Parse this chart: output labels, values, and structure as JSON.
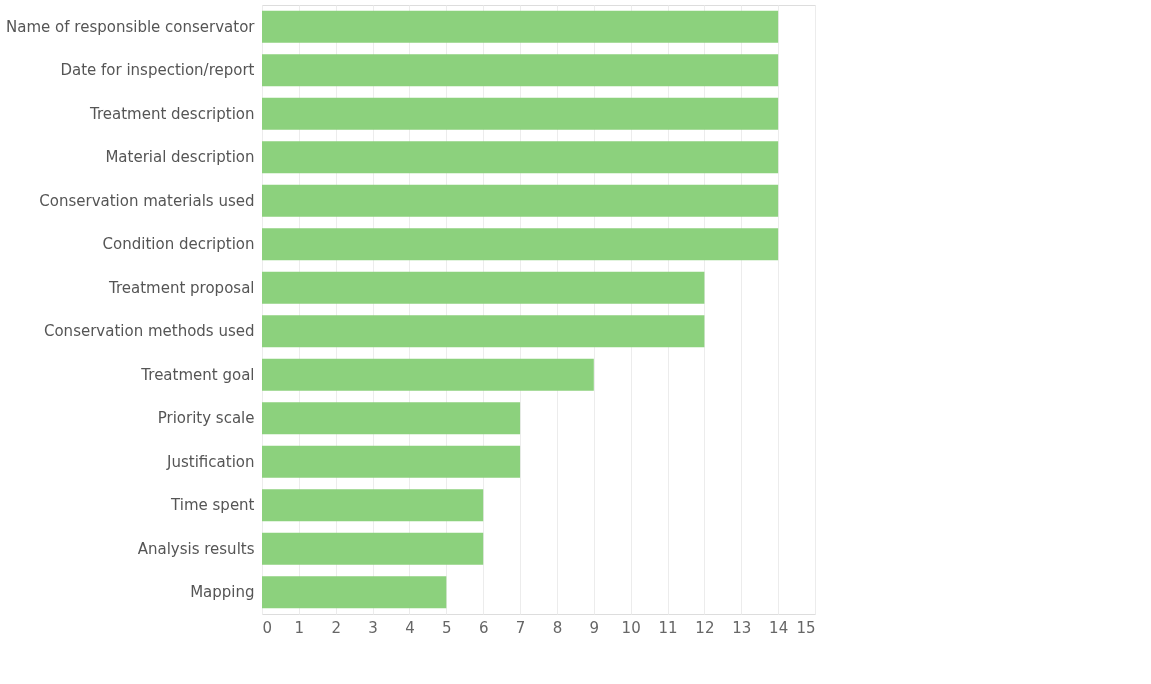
{
  "chart_data": {
    "type": "bar",
    "orientation": "horizontal",
    "categories": [
      "Name of responsible conservator",
      "Date for inspection/report",
      "Treatment description",
      "Material description",
      "Conservation materials used",
      "Condition decription",
      "Treatment proposal",
      "Conservation methods used",
      "Treatment goal",
      "Priority scale",
      "Justification",
      "Time spent",
      "Analysis results",
      "Mapping"
    ],
    "values": [
      14,
      14,
      14,
      14,
      14,
      14,
      12,
      12,
      9,
      7,
      7,
      6,
      6,
      5
    ],
    "color": "#8cd17d",
    "xlim": [
      0,
      15
    ],
    "xticks": [
      0,
      1,
      2,
      3,
      4,
      5,
      6,
      7,
      8,
      9,
      10,
      11,
      12,
      13,
      14,
      15
    ],
    "grid": "x"
  }
}
